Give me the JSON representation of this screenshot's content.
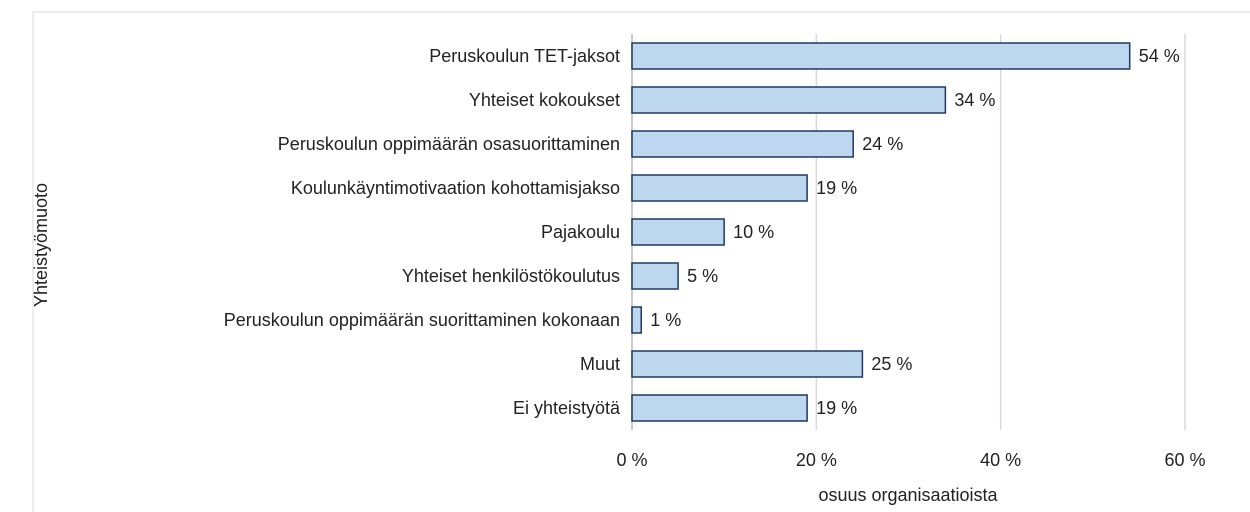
{
  "chart_data": {
    "type": "barh",
    "categories": [
      "Peruskoulun TET-jaksot",
      "Yhteiset kokoukset",
      "Peruskoulun oppimäärän osasuorittaminen",
      "Koulunkäyntimotivaation kohottamisjakso",
      "Pajakoulu",
      "Yhteiset henkilöstökoulutus",
      "Peruskoulun oppimäärän suorittaminen kokonaan",
      "Muut",
      "Ei yhteistyötä"
    ],
    "values": [
      54,
      34,
      24,
      19,
      10,
      5,
      1,
      25,
      19
    ],
    "value_labels": [
      "54 %",
      "34 %",
      "24 %",
      "19 %",
      "10 %",
      "5 %",
      "1 %",
      "25 %",
      "19 %"
    ],
    "color": "#bdd7ee",
    "edge_color": "#203864",
    "xlim": [
      0,
      60
    ],
    "xticks": [
      {
        "value": 0,
        "label": "0 %"
      },
      {
        "value": 20,
        "label": "20 %"
      },
      {
        "value": 40,
        "label": "40 %"
      },
      {
        "value": 60,
        "label": "60 %"
      }
    ],
    "grid": true,
    "xlabel": "osuus organisaatioista",
    "ylabel": "Yhteistyömuoto"
  }
}
